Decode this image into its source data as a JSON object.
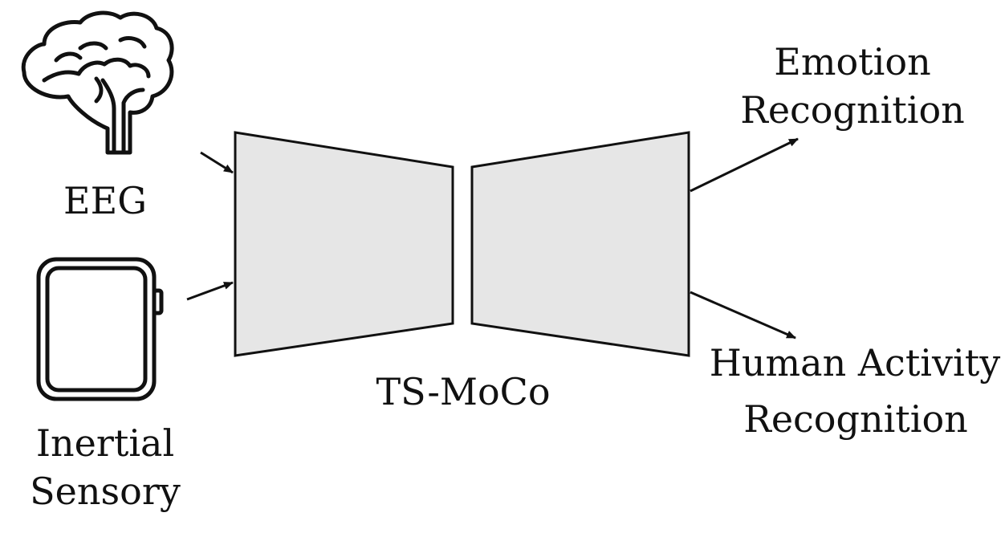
{
  "labels": {
    "eeg": "EEG",
    "inertial_line1": "Inertial",
    "inertial_line2": "Sensory",
    "model": "TS-MoCo",
    "emotion_line1": "Emotion",
    "emotion_line2": "Recognition",
    "har_line1": "Human Activity",
    "har_line2": "Recognition"
  },
  "icons": {
    "eeg_input": "brain-icon",
    "inertial_input": "smartwatch-icon"
  },
  "colors": {
    "block_fill": "#e6e6e6",
    "stroke": "#111111",
    "background": "#ffffff"
  }
}
